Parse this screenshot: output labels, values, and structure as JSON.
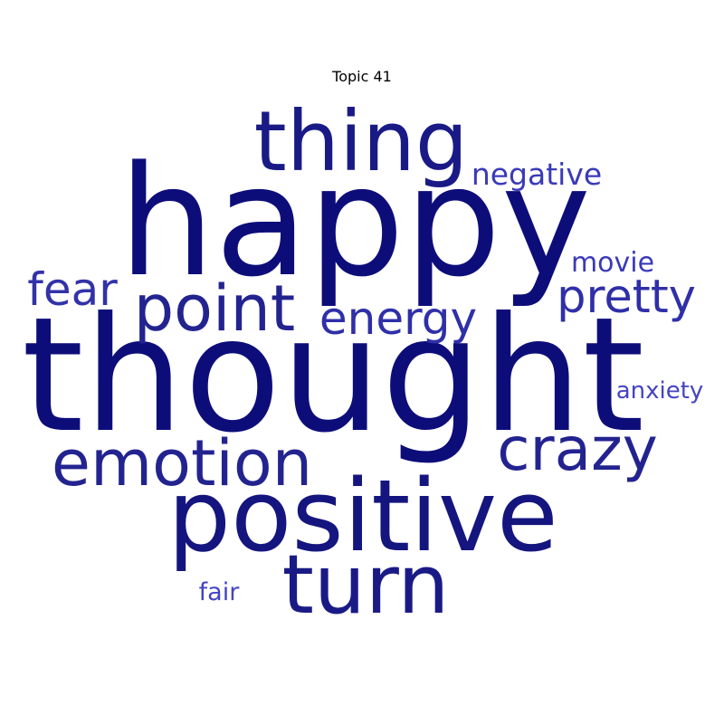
{
  "chart_data": {
    "type": "wordcloud",
    "title": "Topic 41",
    "words": [
      {
        "text": "thought",
        "weight": 1.0,
        "color": "#0d0d7a"
      },
      {
        "text": "happy",
        "weight": 0.96,
        "color": "#0d0d7a"
      },
      {
        "text": "positive",
        "weight": 0.78,
        "color": "#15157f"
      },
      {
        "text": "thing",
        "weight": 0.6,
        "color": "#1a1a86"
      },
      {
        "text": "turn",
        "weight": 0.6,
        "color": "#1a1a86"
      },
      {
        "text": "point",
        "weight": 0.5,
        "color": "#232390"
      },
      {
        "text": "emotion",
        "weight": 0.5,
        "color": "#232390"
      },
      {
        "text": "crazy",
        "weight": 0.48,
        "color": "#232390"
      },
      {
        "text": "pretty",
        "weight": 0.38,
        "color": "#2f2fa8"
      },
      {
        "text": "fear",
        "weight": 0.37,
        "color": "#3232a8"
      },
      {
        "text": "energy",
        "weight": 0.36,
        "color": "#2f2fa8"
      },
      {
        "text": "negative",
        "weight": 0.25,
        "color": "#3a3ab8"
      },
      {
        "text": "movie",
        "weight": 0.22,
        "color": "#3a3ab8"
      },
      {
        "text": "anxiety",
        "weight": 0.2,
        "color": "#4444c2"
      },
      {
        "text": "fair",
        "weight": 0.2,
        "color": "#4444c2"
      }
    ]
  }
}
